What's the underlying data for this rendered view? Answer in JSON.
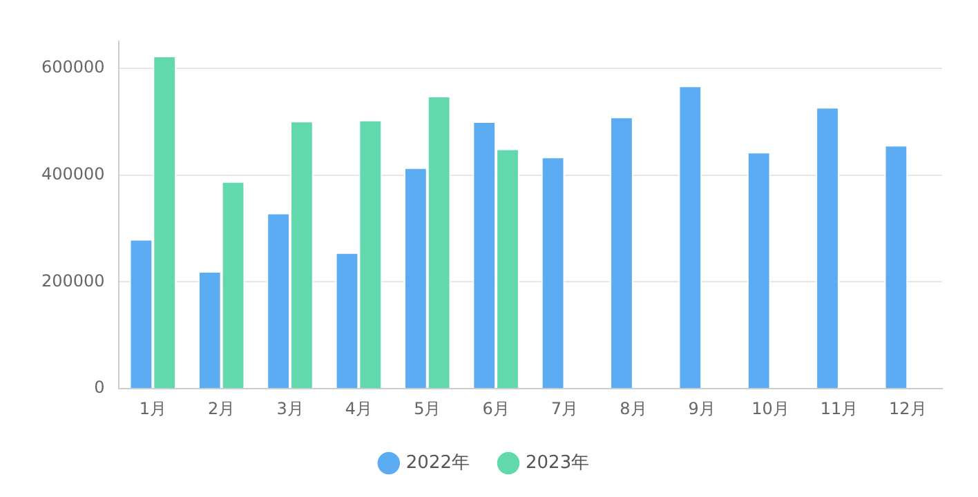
{
  "chart_data": {
    "type": "bar",
    "categories": [
      "1月",
      "2月",
      "3月",
      "4月",
      "5月",
      "6月",
      "7月",
      "8月",
      "9月",
      "10月",
      "11月",
      "12月"
    ],
    "series": [
      {
        "name": "2022年",
        "color": "#5bacf2",
        "values": [
          280000,
          220000,
          329000,
          255000,
          414000,
          500000,
          434000,
          509000,
          567000,
          443000,
          527000,
          456000
        ]
      },
      {
        "name": "2023年",
        "color": "#62d9ad",
        "values": [
          623000,
          388000,
          501000,
          503000,
          548000,
          449000,
          null,
          null,
          null,
          null,
          null,
          null
        ]
      }
    ],
    "ylim": [
      0,
      650000
    ],
    "yticks": [
      0,
      200000,
      400000,
      600000
    ],
    "grid": "y",
    "legend": "bottom"
  }
}
